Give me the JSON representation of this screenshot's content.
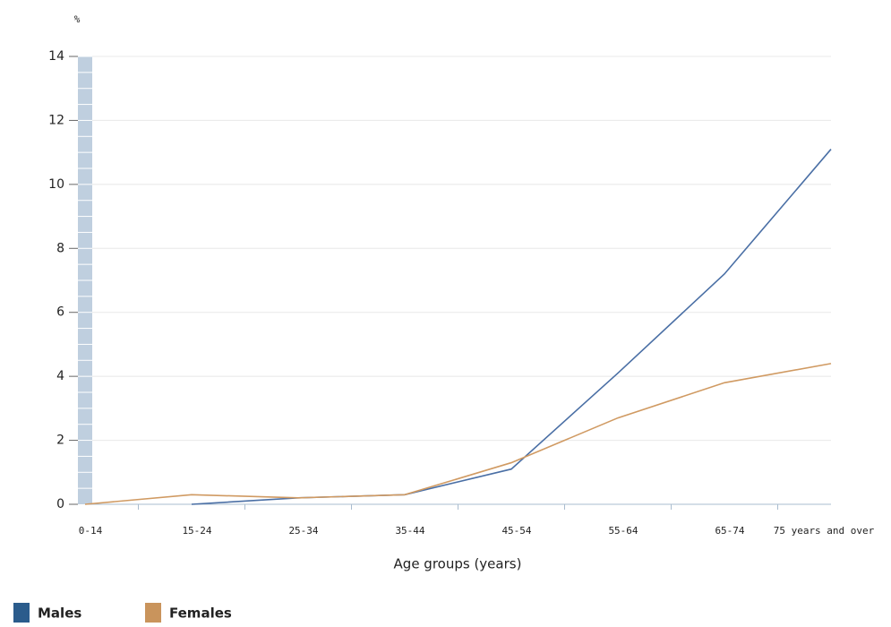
{
  "chart_data": {
    "type": "line",
    "y_label": "%",
    "x_label": "Age groups (years)",
    "categories": [
      "0-14",
      "15-24",
      "25-34",
      "35-44",
      "45-54",
      "55-64",
      "65-74",
      "75 years and over"
    ],
    "series": [
      {
        "name": "Males",
        "color": "#4a6fa5",
        "values": [
          null,
          0.0,
          0.2,
          0.3,
          1.1,
          4.1,
          7.2,
          11.1
        ]
      },
      {
        "name": "Females",
        "color": "#d09a62",
        "values": [
          0,
          0.3,
          0.2,
          0.3,
          1.3,
          2.7,
          3.8,
          4.4
        ]
      }
    ],
    "legend_colors": [
      "#2b5c8c",
      "#c9945c"
    ],
    "ylim": [
      0,
      14
    ],
    "yticks": [
      0,
      2,
      4,
      6,
      8,
      10,
      12,
      14
    ],
    "grid": true
  }
}
